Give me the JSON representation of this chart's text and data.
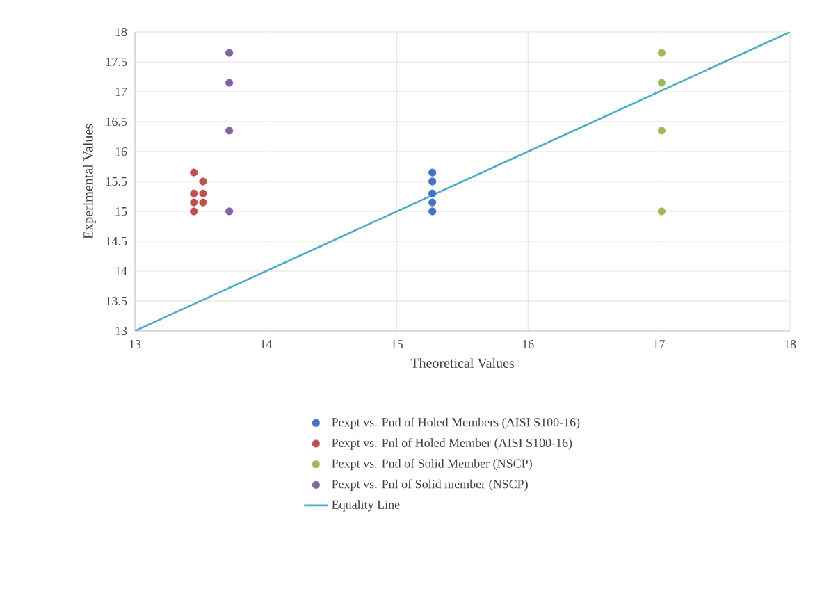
{
  "chart_data": {
    "type": "scatter",
    "xlabel": "Theoretical Values",
    "ylabel": "Experimental Values",
    "xlim": [
      13,
      18
    ],
    "ylim": [
      13,
      18
    ],
    "xticks": [
      13,
      14,
      15,
      16,
      17,
      18
    ],
    "yticks": [
      13,
      13.5,
      14,
      14.5,
      15,
      15.5,
      16,
      16.5,
      17,
      17.5,
      18
    ],
    "grid": true,
    "legend": "bottom",
    "series": [
      {
        "name": "Pexpt vs. Pnd of Holed Members (AISI S100-16)",
        "color": "#4472c4",
        "marker": "circle",
        "x": [
          15.27,
          15.27,
          15.27,
          15.27,
          15.27
        ],
        "values": [
          15.65,
          15.5,
          15.3,
          15.15,
          15.0
        ]
      },
      {
        "name": "Pexpt vs. Pnl of Holed Member (AISI S100-16)",
        "color": "#c0504d",
        "marker": "circle",
        "x": [
          13.45,
          13.45,
          13.45,
          13.45,
          13.52,
          13.52,
          13.52
        ],
        "values": [
          15.65,
          15.3,
          15.15,
          15.0,
          15.5,
          15.3,
          15.15
        ]
      },
      {
        "name": "Pexpt vs. Pnd of Solid Member (NSCP)",
        "color": "#9bbb59",
        "marker": "circle",
        "x": [
          17.02,
          17.02,
          17.02,
          17.02
        ],
        "values": [
          17.65,
          17.15,
          16.35,
          15.0
        ]
      },
      {
        "name": "Pexpt vs. Pnl of Solid member (NSCP)",
        "color": "#8064a2",
        "marker": "circle",
        "x": [
          13.72,
          13.72,
          13.72,
          13.72
        ],
        "values": [
          17.65,
          17.15,
          16.35,
          15.0
        ]
      },
      {
        "name": "Equality Line",
        "type": "line",
        "marker": "none",
        "color": "#4bacc6",
        "x": [
          13,
          18
        ],
        "values": [
          13,
          18
        ]
      }
    ]
  }
}
